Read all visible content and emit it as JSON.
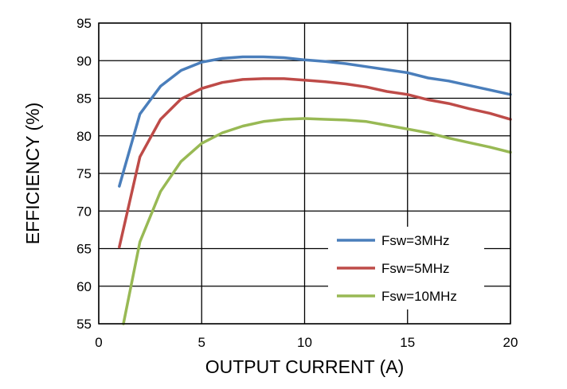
{
  "chart_data": {
    "type": "line",
    "xlabel": "OUTPUT CURRENT (A)",
    "ylabel": "EFFICIENCY (%)",
    "xlim": [
      0,
      20
    ],
    "ylim": [
      55,
      95
    ],
    "xticks": [
      0,
      5,
      10,
      15,
      20
    ],
    "yticks": [
      55,
      60,
      65,
      70,
      75,
      80,
      85,
      90,
      95
    ],
    "grid": true,
    "legend_position": "bottom-right",
    "series": [
      {
        "name": "Fsw=3MHz",
        "color": "#4a7ebb",
        "x": [
          1,
          2,
          3,
          4,
          5,
          6,
          7,
          8,
          9,
          10,
          11,
          12,
          13,
          14,
          15,
          16,
          17,
          18,
          19,
          20
        ],
        "y": [
          73.3,
          82.9,
          86.6,
          88.7,
          89.8,
          90.3,
          90.5,
          90.5,
          90.4,
          90.1,
          89.9,
          89.6,
          89.2,
          88.8,
          88.4,
          87.7,
          87.3,
          86.7,
          86.1,
          85.5
        ]
      },
      {
        "name": "Fsw=5MHz",
        "color": "#be4b48",
        "x": [
          1,
          2,
          3,
          4,
          5,
          6,
          7,
          8,
          9,
          10,
          11,
          12,
          13,
          14,
          15,
          16,
          17,
          18,
          19,
          20
        ],
        "y": [
          65.2,
          77.2,
          82.2,
          84.9,
          86.3,
          87.1,
          87.5,
          87.6,
          87.6,
          87.4,
          87.2,
          86.9,
          86.5,
          85.9,
          85.5,
          84.8,
          84.3,
          83.6,
          83.0,
          82.2
        ]
      },
      {
        "name": "Fsw=10MHz",
        "color": "#98b954",
        "x": [
          1.2,
          2,
          3,
          4,
          5,
          6,
          7,
          8,
          9,
          10,
          11,
          12,
          13,
          14,
          15,
          16,
          17,
          18,
          19,
          20
        ],
        "y": [
          55.0,
          65.9,
          72.6,
          76.6,
          79.0,
          80.4,
          81.3,
          81.9,
          82.2,
          82.3,
          82.2,
          82.1,
          81.9,
          81.4,
          80.9,
          80.4,
          79.7,
          79.1,
          78.5,
          77.8
        ]
      }
    ]
  }
}
